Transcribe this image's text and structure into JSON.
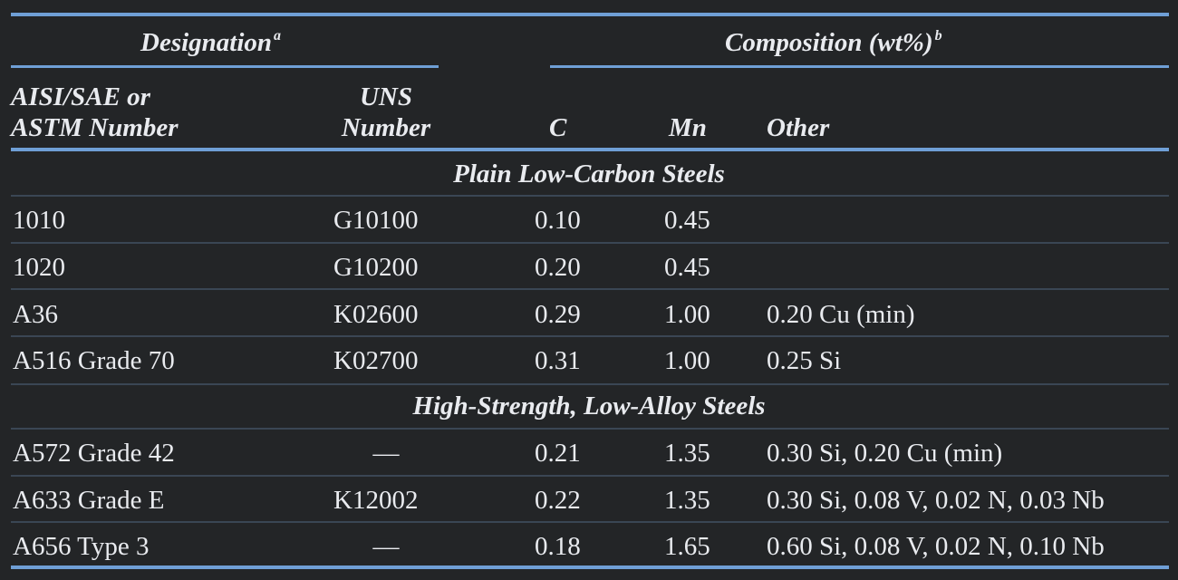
{
  "header": {
    "designation": "Designation",
    "designation_note": "a",
    "composition": "Composition (wt%)",
    "composition_note": "b",
    "col_aisi_line1": "AISI/SAE or",
    "col_aisi_line2": "ASTM Number",
    "col_uns_line1": "UNS",
    "col_uns_line2": "Number",
    "col_c": "C",
    "col_mn": "Mn",
    "col_other": "Other"
  },
  "sections": [
    {
      "title": "Plain Low-Carbon Steels",
      "rows": [
        {
          "aisi": "1010",
          "uns": "G10100",
          "c": "0.10",
          "mn": "0.45",
          "other": ""
        },
        {
          "aisi": "1020",
          "uns": "G10200",
          "c": "0.20",
          "mn": "0.45",
          "other": ""
        },
        {
          "aisi": "A36",
          "uns": "K02600",
          "c": "0.29",
          "mn": "1.00",
          "other": "0.20 Cu (min)"
        },
        {
          "aisi": "A516 Grade 70",
          "uns": "K02700",
          "c": "0.31",
          "mn": "1.00",
          "other": "0.25 Si"
        }
      ]
    },
    {
      "title": "High-Strength, Low-Alloy Steels",
      "rows": [
        {
          "aisi": "A572 Grade 42",
          "uns": "—",
          "c": "0.21",
          "mn": "1.35",
          "other": "0.30 Si, 0.20 Cu (min)"
        },
        {
          "aisi": "A633 Grade E",
          "uns": "K12002",
          "c": "0.22",
          "mn": "1.35",
          "other": "0.30 Si, 0.08 V, 0.02 N, 0.03 Nb"
        },
        {
          "aisi": "A656 Type 3",
          "uns": "—",
          "c": "0.18",
          "mn": "1.65",
          "other": "0.60 Si, 0.08 V, 0.02 N, 0.10 Nb"
        }
      ]
    }
  ]
}
